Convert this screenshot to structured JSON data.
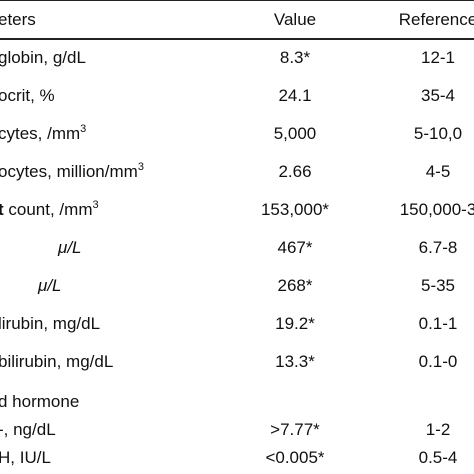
{
  "table": {
    "headers": {
      "parameter": "eters",
      "value": "Value",
      "reference": "Reference"
    },
    "rows": [
      {
        "parameter": "globin, g/dL",
        "value": "8.3*",
        "reference": "12-1"
      },
      {
        "parameter": "ocrit, %",
        "value": "24.1",
        "reference": "35-4"
      },
      {
        "parameter": "cytes, /mm",
        "sup": "3",
        "value": "5,000",
        "reference": "5-10,0"
      },
      {
        "parameter": "ocytes, million/mm",
        "sup": "3",
        "value": "2.66",
        "reference": "4-5"
      },
      {
        "parameter_bold": "t",
        "parameter": " count, /mm",
        "sup": "3",
        "value": "153,000*",
        "reference": "150,000-3"
      },
      {
        "parameter": "μ/L",
        "value": "467*",
        "reference": "6.7-8"
      },
      {
        "parameter": "μ/L",
        "value": "268*",
        "reference": "5-35"
      },
      {
        "parameter": "lirubin, mg/dL",
        "value": "19.2*",
        "reference": "0.1-1"
      },
      {
        "parameter": "bilirubin, mg/dL",
        "value": "13.3*",
        "reference": "0.1-0"
      },
      {
        "parameter": "d hormone"
      },
      {
        "parameter": "-, ng/dL",
        "value": ">7.77*",
        "reference": "1-2"
      },
      {
        "parameter": "H, IU/L",
        "value": "<0.005*",
        "reference": "0.5-4"
      }
    ]
  }
}
